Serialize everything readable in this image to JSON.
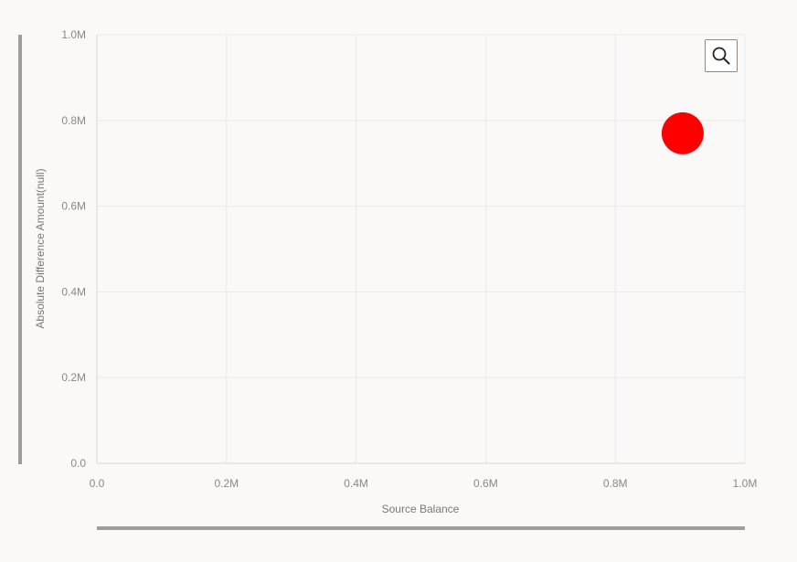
{
  "chart_data": {
    "type": "scatter",
    "title": "",
    "xlabel": "Source Balance",
    "ylabel": "Absolute Difference Amount(null)",
    "xlim": [
      0,
      1000000
    ],
    "ylim": [
      0,
      1000000
    ],
    "x_ticks": [
      "0.0",
      "0.2M",
      "0.4M",
      "0.6M",
      "0.8M",
      "1.0M"
    ],
    "y_ticks": [
      "0.0",
      "0.2M",
      "0.4M",
      "0.6M",
      "0.8M",
      "1.0M"
    ],
    "grid": true,
    "points": [
      {
        "x": 904000,
        "y": 770000,
        "color": "#ff0000"
      }
    ]
  },
  "toolbar": {
    "zoom_icon": "magnifier-icon"
  },
  "colors": {
    "point": "#ff0000",
    "grid": "#e7eaf0",
    "scrollbar": "#9e9d9b",
    "tick_text": "#8a8886"
  }
}
